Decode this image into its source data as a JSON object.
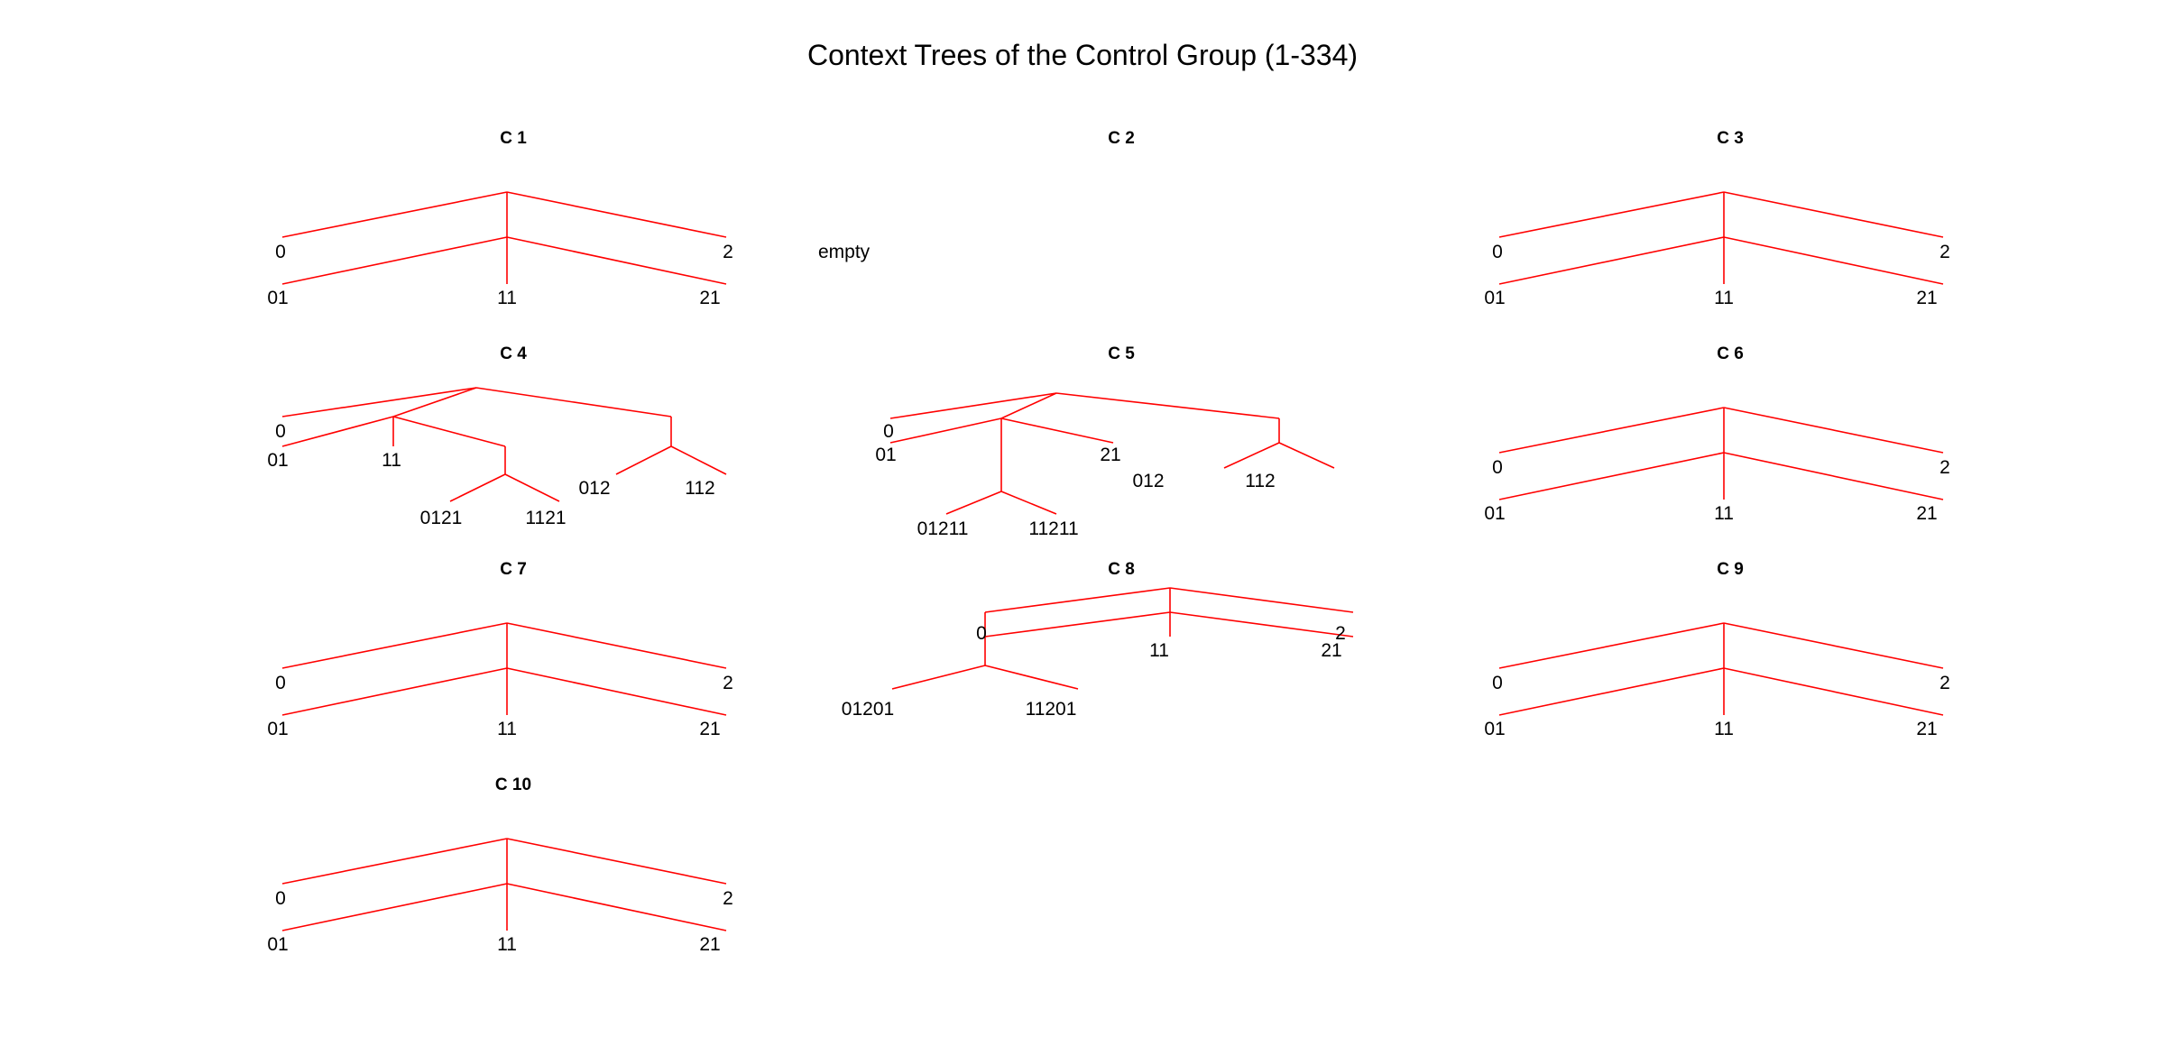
{
  "title": "Context Trees of the Control Group (1-334)",
  "colors": {
    "edge": "#ff0000",
    "text": "#000000",
    "background": "#ffffff"
  },
  "panels": [
    {
      "title": "C 1",
      "layout": "standard",
      "labels": [
        "0",
        "2",
        "01",
        "11",
        "21"
      ]
    },
    {
      "title": "C 2",
      "layout": "empty",
      "labels": [
        "empty"
      ]
    },
    {
      "title": "C 3",
      "layout": "standard",
      "labels": [
        "0",
        "2",
        "01",
        "11",
        "21"
      ]
    },
    {
      "title": "C 4",
      "layout": "c4",
      "labels": [
        "0",
        "01",
        "11",
        "012",
        "112",
        "0121",
        "1121"
      ]
    },
    {
      "title": "C 5",
      "layout": "c5",
      "labels": [
        "0",
        "01",
        "21",
        "012",
        "112",
        "01211",
        "11211"
      ]
    },
    {
      "title": "C 6",
      "layout": "standard",
      "labels": [
        "0",
        "2",
        "01",
        "11",
        "21"
      ]
    },
    {
      "title": "C 7",
      "layout": "standard",
      "labels": [
        "0",
        "2",
        "01",
        "11",
        "21"
      ]
    },
    {
      "title": "C 8",
      "layout": "c8",
      "labels": [
        "0",
        "2",
        "11",
        "21",
        "01201",
        "11201"
      ]
    },
    {
      "title": "C 9",
      "layout": "standard",
      "labels": [
        "0",
        "2",
        "01",
        "11",
        "21"
      ]
    },
    {
      "title": "C 10",
      "layout": "standard",
      "labels": [
        "0",
        "2",
        "01",
        "11",
        "21"
      ]
    }
  ]
}
